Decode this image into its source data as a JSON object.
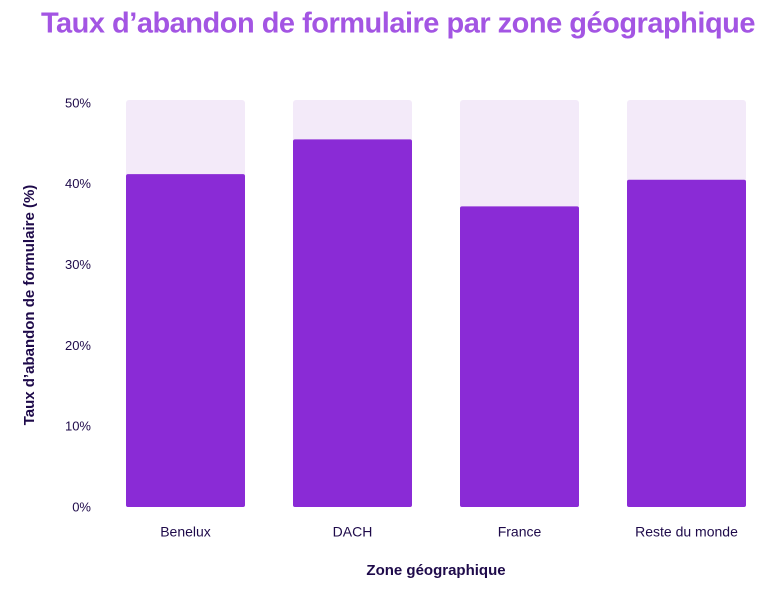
{
  "chart_data": {
    "type": "bar",
    "title": "Taux d’abandon de formulaire par zone géographique",
    "x_label": "Zone géographique",
    "y_label": "Taux d’abandon de formulaire (%)",
    "categories": [
      "Benelux",
      "DACH",
      "France",
      "Reste du monde"
    ],
    "values": [
      41.2,
      45.5,
      37.2,
      40.5
    ],
    "color": "#8a2bd6",
    "track_color": "#f3eaf9",
    "ylim": [
      0,
      50
    ],
    "yticks": [
      {
        "value": 0,
        "label": "0%"
      },
      {
        "value": 10,
        "label": "10%"
      },
      {
        "value": 20,
        "label": "20%"
      },
      {
        "value": 30,
        "label": "30%"
      },
      {
        "value": 40,
        "label": "40%"
      },
      {
        "value": 50,
        "label": "50%"
      }
    ]
  }
}
